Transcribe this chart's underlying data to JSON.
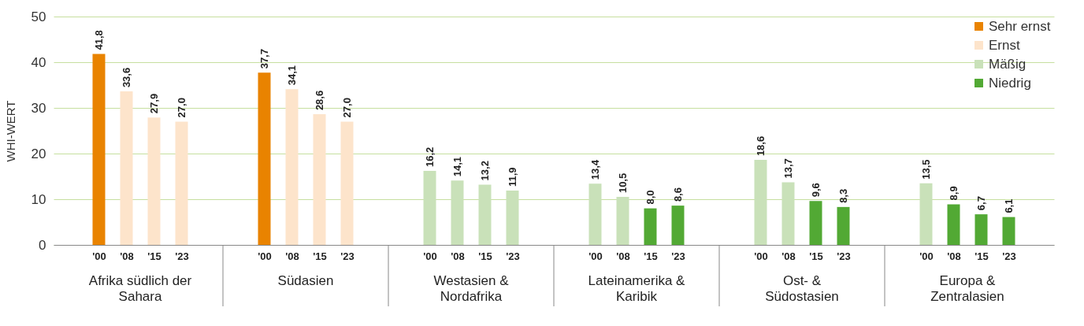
{
  "chart_data": {
    "type": "bar",
    "ylabel": "WHI-WERT",
    "categories": [
      "'00",
      "'08",
      "'15",
      "'23",
      "'00",
      "'08",
      "'15",
      "'23",
      "'00",
      "'08",
      "'15",
      "'23",
      "'00",
      "'08",
      "'15",
      "'23",
      "'00",
      "'08",
      "'15",
      "'23",
      "'00",
      "'08",
      "'15",
      "'23"
    ],
    "annotations": [
      "Afrika südlich der Sahara",
      "Südasien",
      "Westasien & Nordafrika",
      "Lateinamerika & Karibik",
      "Ost- & Südostasien",
      "Europa & Zentralasien"
    ],
    "series": [
      {
        "name": "Sehr ernst",
        "color": "#e98300",
        "values": [
          41.8,
          null,
          null,
          null,
          37.7,
          null,
          null,
          null,
          null,
          null,
          null,
          null,
          null,
          null,
          null,
          null,
          null,
          null,
          null,
          null,
          null,
          null,
          null,
          null
        ],
        "value_labels": [
          "41,8",
          null,
          null,
          null,
          "37,7",
          null,
          null,
          null,
          null,
          null,
          null,
          null,
          null,
          null,
          null,
          null,
          null,
          null,
          null,
          null,
          null,
          null,
          null,
          null
        ]
      },
      {
        "name": "Ernst",
        "color": "#fde4cb",
        "values": [
          null,
          33.6,
          27.9,
          27.0,
          null,
          34.1,
          28.6,
          27.0,
          null,
          null,
          null,
          null,
          null,
          null,
          null,
          null,
          null,
          null,
          null,
          null,
          null,
          null,
          null,
          null
        ],
        "value_labels": [
          null,
          "33,6",
          "27,9",
          "27,0",
          null,
          "34,1",
          "28,6",
          "27,0",
          null,
          null,
          null,
          null,
          null,
          null,
          null,
          null,
          null,
          null,
          null,
          null,
          null,
          null,
          null,
          null
        ]
      },
      {
        "name": "Mäßig",
        "color": "#c9e1b9",
        "values": [
          null,
          null,
          null,
          null,
          null,
          null,
          null,
          null,
          16.2,
          14.1,
          13.2,
          11.9,
          13.4,
          10.5,
          null,
          null,
          18.6,
          13.7,
          null,
          null,
          13.5,
          null,
          null,
          null
        ],
        "value_labels": [
          null,
          null,
          null,
          null,
          null,
          null,
          null,
          null,
          "16,2",
          "14,1",
          "13,2",
          "11,9",
          "13,4",
          "10,5",
          null,
          null,
          "18,6",
          "13,7",
          null,
          null,
          "13,5",
          null,
          null,
          null
        ]
      },
      {
        "name": "Niedrig",
        "color": "#52a934",
        "values": [
          null,
          null,
          null,
          null,
          null,
          null,
          null,
          null,
          null,
          null,
          null,
          null,
          null,
          null,
          8.0,
          8.6,
          null,
          null,
          9.6,
          8.3,
          null,
          8.9,
          6.7,
          6.1
        ],
        "value_labels": [
          null,
          null,
          null,
          null,
          null,
          null,
          null,
          null,
          null,
          null,
          null,
          null,
          null,
          null,
          "8,0",
          "8,6",
          null,
          null,
          "9,6",
          "8,3",
          null,
          "8,9",
          "6,7",
          "6,1"
        ]
      }
    ],
    "ylim": [
      0,
      50
    ],
    "yticks": [
      0,
      10,
      20,
      30,
      40,
      50
    ],
    "grid": "y",
    "legend": "top right"
  }
}
